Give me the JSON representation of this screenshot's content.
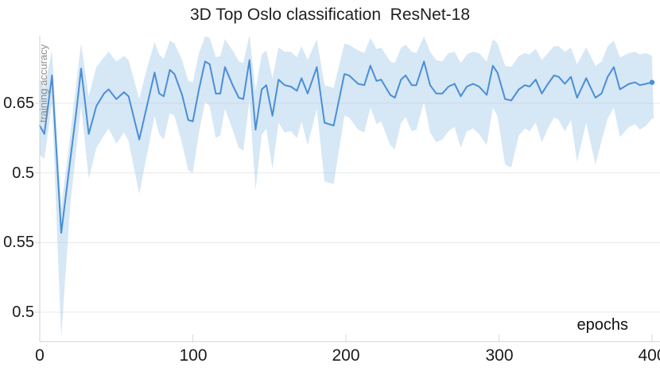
{
  "chart_data": {
    "type": "line",
    "title": "3D Top Oslo classification  ResNet-18",
    "xlabel": "epochs",
    "ylabel": "training accuracy",
    "x_tick_labels": [
      "0",
      "100",
      "200",
      "300",
      "400"
    ],
    "y_tick_labels": [
      "0.65",
      "0.5",
      "0.55",
      "0.5"
    ],
    "x_range": [
      0,
      400
    ],
    "grid": "horizontal-only",
    "legend": "none",
    "colors": {
      "line": "#4a8ed6",
      "band_fill": "#9ec5e8",
      "band_opacity": 0.42,
      "gridline": "#e8e8e8",
      "axis": "#d0d0d0",
      "tick": "#d9d9d9"
    },
    "series_note": "mean training accuracy with shaded confidence band; columns are [epoch, mean, band_low, band_high]",
    "points": [
      [
        0,
        0.634,
        0.613,
        0.668
      ],
      [
        3,
        0.628,
        0.61,
        0.661
      ],
      [
        8,
        0.67,
        0.65,
        0.688
      ],
      [
        14,
        0.557,
        0.482,
        0.575
      ],
      [
        20,
        0.61,
        0.578,
        0.628
      ],
      [
        24,
        0.645,
        0.618,
        0.666
      ],
      [
        27,
        0.675,
        0.648,
        0.693
      ],
      [
        32,
        0.628,
        0.596,
        0.655
      ],
      [
        37,
        0.648,
        0.618,
        0.676
      ],
      [
        42,
        0.657,
        0.627,
        0.683
      ],
      [
        45,
        0.66,
        0.632,
        0.687
      ],
      [
        50,
        0.653,
        0.621,
        0.68
      ],
      [
        55,
        0.658,
        0.629,
        0.684
      ],
      [
        58,
        0.655,
        0.623,
        0.681
      ],
      [
        65,
        0.624,
        0.585,
        0.653
      ],
      [
        70,
        0.648,
        0.613,
        0.675
      ],
      [
        75,
        0.672,
        0.641,
        0.694
      ],
      [
        78,
        0.657,
        0.628,
        0.685
      ],
      [
        81,
        0.655,
        0.624,
        0.682
      ],
      [
        85,
        0.674,
        0.643,
        0.695
      ],
      [
        88,
        0.671,
        0.641,
        0.693
      ],
      [
        93,
        0.656,
        0.621,
        0.681
      ],
      [
        97,
        0.638,
        0.602,
        0.666
      ],
      [
        100,
        0.637,
        0.6,
        0.665
      ],
      [
        104,
        0.66,
        0.629,
        0.686
      ],
      [
        108,
        0.68,
        0.651,
        0.698
      ],
      [
        111,
        0.678,
        0.648,
        0.697
      ],
      [
        115,
        0.657,
        0.625,
        0.683
      ],
      [
        118,
        0.657,
        0.627,
        0.684
      ],
      [
        121,
        0.676,
        0.646,
        0.696
      ],
      [
        126,
        0.663,
        0.631,
        0.688
      ],
      [
        130,
        0.654,
        0.618,
        0.68
      ],
      [
        133,
        0.653,
        0.616,
        0.679
      ],
      [
        137,
        0.681,
        0.652,
        0.699
      ],
      [
        141,
        0.631,
        0.588,
        0.659
      ],
      [
        145,
        0.66,
        0.627,
        0.685
      ],
      [
        148,
        0.663,
        0.632,
        0.688
      ],
      [
        152,
        0.641,
        0.603,
        0.668
      ],
      [
        156,
        0.667,
        0.636,
        0.69
      ],
      [
        160,
        0.663,
        0.629,
        0.687
      ],
      [
        164,
        0.662,
        0.63,
        0.687
      ],
      [
        168,
        0.659,
        0.625,
        0.683
      ],
      [
        171,
        0.668,
        0.637,
        0.691
      ],
      [
        175,
        0.657,
        0.62,
        0.681
      ],
      [
        181,
        0.676,
        0.646,
        0.696
      ],
      [
        186,
        0.636,
        0.594,
        0.663
      ],
      [
        192,
        0.634,
        0.592,
        0.661
      ],
      [
        199,
        0.671,
        0.641,
        0.693
      ],
      [
        202,
        0.67,
        0.64,
        0.692
      ],
      [
        208,
        0.664,
        0.631,
        0.688
      ],
      [
        212,
        0.663,
        0.629,
        0.686
      ],
      [
        216,
        0.677,
        0.647,
        0.697
      ],
      [
        220,
        0.666,
        0.635,
        0.689
      ],
      [
        223,
        0.667,
        0.637,
        0.69
      ],
      [
        229,
        0.656,
        0.62,
        0.68
      ],
      [
        232,
        0.654,
        0.617,
        0.679
      ],
      [
        236,
        0.667,
        0.636,
        0.69
      ],
      [
        239,
        0.67,
        0.64,
        0.692
      ],
      [
        243,
        0.663,
        0.63,
        0.687
      ],
      [
        246,
        0.663,
        0.631,
        0.686
      ],
      [
        251,
        0.68,
        0.651,
        0.698
      ],
      [
        255,
        0.663,
        0.629,
        0.687
      ],
      [
        259,
        0.657,
        0.622,
        0.681
      ],
      [
        263,
        0.657,
        0.624,
        0.68
      ],
      [
        267,
        0.662,
        0.63,
        0.686
      ],
      [
        271,
        0.664,
        0.633,
        0.687
      ],
      [
        275,
        0.655,
        0.618,
        0.679
      ],
      [
        279,
        0.662,
        0.63,
        0.685
      ],
      [
        283,
        0.664,
        0.632,
        0.687
      ],
      [
        287,
        0.662,
        0.628,
        0.686
      ],
      [
        292,
        0.656,
        0.62,
        0.68
      ],
      [
        296,
        0.677,
        0.647,
        0.696
      ],
      [
        299,
        0.672,
        0.641,
        0.693
      ],
      [
        304,
        0.653,
        0.606,
        0.677
      ],
      [
        308,
        0.652,
        0.604,
        0.676
      ],
      [
        313,
        0.66,
        0.627,
        0.684
      ],
      [
        317,
        0.663,
        0.632,
        0.686
      ],
      [
        320,
        0.662,
        0.63,
        0.685
      ],
      [
        324,
        0.667,
        0.636,
        0.689
      ],
      [
        328,
        0.657,
        0.622,
        0.681
      ],
      [
        332,
        0.664,
        0.632,
        0.686
      ],
      [
        336,
        0.67,
        0.64,
        0.691
      ],
      [
        339,
        0.669,
        0.638,
        0.691
      ],
      [
        343,
        0.664,
        0.63,
        0.687
      ],
      [
        347,
        0.669,
        0.638,
        0.69
      ],
      [
        351,
        0.654,
        0.608,
        0.678
      ],
      [
        357,
        0.668,
        0.636,
        0.69
      ],
      [
        363,
        0.654,
        0.606,
        0.677
      ],
      [
        367,
        0.657,
        0.623,
        0.68
      ],
      [
        371,
        0.669,
        0.639,
        0.691
      ],
      [
        375,
        0.676,
        0.647,
        0.695
      ],
      [
        379,
        0.66,
        0.626,
        0.683
      ],
      [
        385,
        0.664,
        0.633,
        0.686
      ],
      [
        389,
        0.665,
        0.635,
        0.687
      ],
      [
        392,
        0.663,
        0.631,
        0.685
      ],
      [
        396,
        0.664,
        0.634,
        0.686
      ],
      [
        400,
        0.665,
        0.639,
        0.684
      ]
    ]
  }
}
